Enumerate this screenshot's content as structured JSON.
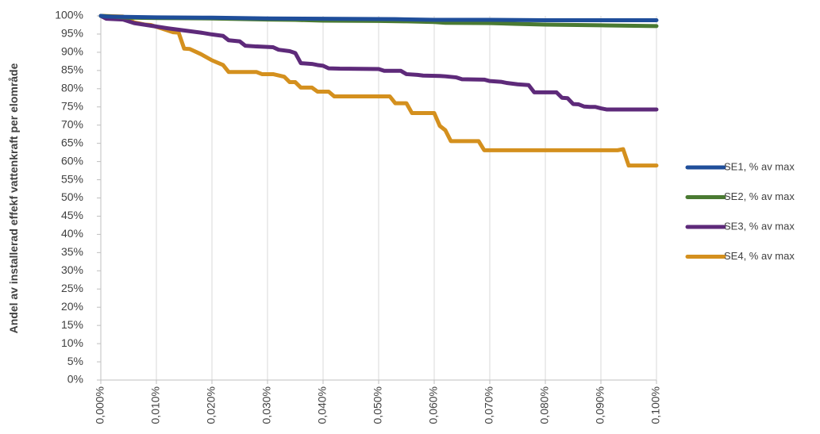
{
  "chart_data": {
    "type": "line",
    "title": "",
    "xlabel": "",
    "ylabel": "Andel av installerad effekf vattenkraft per elområde",
    "xlim": [
      0,
      0.1
    ],
    "ylim": [
      0,
      100
    ],
    "x_ticks": [
      "0,000%",
      "0,010%",
      "0,020%",
      "0,030%",
      "0,040%",
      "0,050%",
      "0,060%",
      "0,070%",
      "0,080%",
      "0,090%",
      "0,100%"
    ],
    "y_ticks": [
      "0%",
      "5%",
      "10%",
      "15%",
      "20%",
      "25%",
      "30%",
      "35%",
      "40%",
      "45%",
      "50%",
      "55%",
      "60%",
      "65%",
      "70%",
      "75%",
      "80%",
      "85%",
      "90%",
      "95%",
      "100%"
    ],
    "grid": "vertical",
    "legend_position": "right",
    "series": [
      {
        "name": "SE1, % av max",
        "color": "#1f4e9a",
        "points": [
          [
            0,
            100
          ],
          [
            0.001,
            99.8
          ],
          [
            0.01,
            99.6
          ],
          [
            0.02,
            99.5
          ],
          [
            0.03,
            99.3
          ],
          [
            0.04,
            99.2
          ],
          [
            0.053,
            99.1
          ],
          [
            0.06,
            98.9
          ],
          [
            0.07,
            98.9
          ],
          [
            0.08,
            98.8
          ],
          [
            0.09,
            98.8
          ],
          [
            0.1,
            98.8
          ]
        ]
      },
      {
        "name": "SE2, % av max",
        "color": "#4a7a32",
        "points": [
          [
            0,
            100
          ],
          [
            0.005,
            99.5
          ],
          [
            0.01,
            99.4
          ],
          [
            0.02,
            99.3
          ],
          [
            0.03,
            99.0
          ],
          [
            0.035,
            98.9
          ],
          [
            0.04,
            98.7
          ],
          [
            0.05,
            98.6
          ],
          [
            0.055,
            98.5
          ],
          [
            0.06,
            98.3
          ],
          [
            0.062,
            98.1
          ],
          [
            0.07,
            98.0
          ],
          [
            0.075,
            97.8
          ],
          [
            0.08,
            97.6
          ],
          [
            0.09,
            97.4
          ],
          [
            0.1,
            97.2
          ]
        ]
      },
      {
        "name": "SE3, % av max",
        "color": "#5e2a7a",
        "points": [
          [
            0,
            100
          ],
          [
            0.001,
            99.2
          ],
          [
            0.004,
            99.0
          ],
          [
            0.006,
            98.0
          ],
          [
            0.009,
            97.3
          ],
          [
            0.012,
            96.6
          ],
          [
            0.015,
            96.0
          ],
          [
            0.018,
            95.4
          ],
          [
            0.02,
            94.9
          ],
          [
            0.022,
            94.5
          ],
          [
            0.023,
            93.3
          ],
          [
            0.025,
            93.0
          ],
          [
            0.026,
            91.8
          ],
          [
            0.028,
            91.6
          ],
          [
            0.031,
            91.4
          ],
          [
            0.032,
            90.7
          ],
          [
            0.034,
            90.3
          ],
          [
            0.035,
            89.8
          ],
          [
            0.036,
            87.0
          ],
          [
            0.038,
            86.8
          ],
          [
            0.039,
            86.5
          ],
          [
            0.04,
            86.3
          ],
          [
            0.041,
            85.6
          ],
          [
            0.043,
            85.5
          ],
          [
            0.05,
            85.4
          ],
          [
            0.051,
            84.9
          ],
          [
            0.054,
            84.9
          ],
          [
            0.055,
            84.0
          ],
          [
            0.057,
            83.8
          ],
          [
            0.058,
            83.6
          ],
          [
            0.061,
            83.5
          ],
          [
            0.062,
            83.4
          ],
          [
            0.064,
            83.1
          ],
          [
            0.065,
            82.6
          ],
          [
            0.069,
            82.5
          ],
          [
            0.07,
            82.1
          ],
          [
            0.072,
            81.9
          ],
          [
            0.073,
            81.6
          ],
          [
            0.075,
            81.2
          ],
          [
            0.077,
            81.0
          ],
          [
            0.078,
            79.0
          ],
          [
            0.082,
            79.0
          ],
          [
            0.083,
            77.5
          ],
          [
            0.084,
            77.4
          ],
          [
            0.085,
            75.8
          ],
          [
            0.086,
            75.7
          ],
          [
            0.087,
            75.1
          ],
          [
            0.088,
            75.0
          ],
          [
            0.089,
            75.0
          ],
          [
            0.09,
            74.6
          ],
          [
            0.091,
            74.3
          ],
          [
            0.1,
            74.3
          ]
        ]
      },
      {
        "name": "SE4, % av max",
        "color": "#d4901e",
        "points": [
          [
            0,
            100
          ],
          [
            0.004,
            99.8
          ],
          [
            0.006,
            98.2
          ],
          [
            0.008,
            97.6
          ],
          [
            0.009,
            97.5
          ],
          [
            0.011,
            96.5
          ],
          [
            0.013,
            95.5
          ],
          [
            0.014,
            95.4
          ],
          [
            0.015,
            91.0
          ],
          [
            0.016,
            90.9
          ],
          [
            0.018,
            89.5
          ],
          [
            0.02,
            87.8
          ],
          [
            0.022,
            86.5
          ],
          [
            0.023,
            84.6
          ],
          [
            0.028,
            84.6
          ],
          [
            0.029,
            84.0
          ],
          [
            0.031,
            84.0
          ],
          [
            0.033,
            83.3
          ],
          [
            0.034,
            81.8
          ],
          [
            0.035,
            81.8
          ],
          [
            0.036,
            80.3
          ],
          [
            0.038,
            80.3
          ],
          [
            0.039,
            79.2
          ],
          [
            0.041,
            79.2
          ],
          [
            0.042,
            77.9
          ],
          [
            0.052,
            77.9
          ],
          [
            0.053,
            76.0
          ],
          [
            0.055,
            76.0
          ],
          [
            0.056,
            73.3
          ],
          [
            0.06,
            73.3
          ],
          [
            0.061,
            69.8
          ],
          [
            0.062,
            68.6
          ],
          [
            0.063,
            65.6
          ],
          [
            0.068,
            65.6
          ],
          [
            0.069,
            63.1
          ],
          [
            0.093,
            63.1
          ],
          [
            0.094,
            63.4
          ],
          [
            0.095,
            58.9
          ],
          [
            0.1,
            58.9
          ]
        ]
      }
    ]
  }
}
